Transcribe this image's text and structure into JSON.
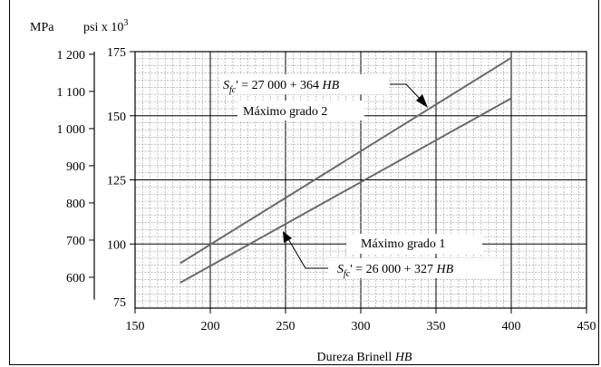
{
  "chart_data": {
    "type": "line",
    "xlabel": "Dureza Brinell",
    "xlabel_italic": "HB",
    "x_range": [
      150,
      450
    ],
    "x_ticks": [
      "150",
      "200",
      "250",
      "300",
      "350",
      "400",
      "450"
    ],
    "y_left_label": "MPa",
    "y_left_ticks": [
      "600",
      "700",
      "800",
      "900",
      "1 000",
      "1 100",
      "1 200"
    ],
    "y_left_range": [
      517,
      1207
    ],
    "y_right_label_base": "psi x 10",
    "y_right_label_exp": "3",
    "y_right_ticks": [
      "75",
      "100",
      "125",
      "150",
      "175"
    ],
    "y_right_range": [
      75,
      175
    ],
    "grid": true,
    "series": [
      {
        "name": "Máximo grado 2",
        "equation_prefix": "' = 27 000 + 364 ",
        "x": [
          180,
          400
        ],
        "y": [
          92.5,
          172.6
        ]
      },
      {
        "name": "Máximo grado 1",
        "equation_prefix": "' = 26 000 + 327 ",
        "x": [
          180,
          400
        ],
        "y": [
          84.9,
          156.8
        ]
      }
    ],
    "equation_symbol": "S",
    "equation_subscript": "fc",
    "equation_variable": "HB",
    "line_color": "#6a6a6a"
  }
}
